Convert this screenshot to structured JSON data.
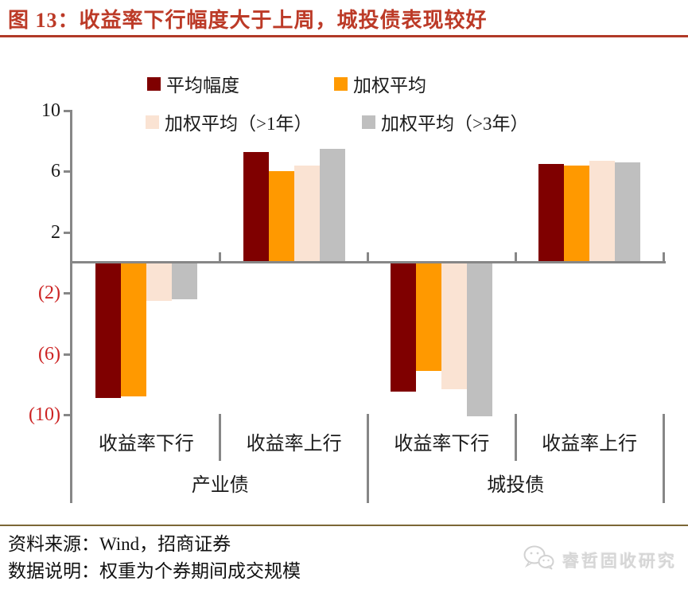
{
  "title": {
    "label": "图 13：收益率下行幅度大于上周，城投债表现较好"
  },
  "chart_data": {
    "type": "bar",
    "categories": [
      "收益率下行",
      "收益率上行",
      "收益率下行",
      "收益率上行"
    ],
    "group_labels": [
      "产业债",
      "城投债"
    ],
    "series": [
      {
        "name": "平均幅度",
        "color": "#7F0000",
        "values": [
          -8.9,
          7.3,
          -8.5,
          6.5
        ]
      },
      {
        "name": "加权平均",
        "color": "#FF9900",
        "values": [
          -8.8,
          6.0,
          -7.1,
          6.4
        ]
      },
      {
        "name": "加权平均（>1年）",
        "color": "#FAE3D3",
        "values": [
          -2.5,
          6.4,
          -8.3,
          6.7
        ]
      },
      {
        "name": "加权平均（>3年）",
        "color": "#BFBFBF",
        "values": [
          -2.4,
          7.5,
          -10.1,
          6.6
        ]
      }
    ],
    "yticks": [
      10,
      6,
      2,
      -2,
      -6,
      -10
    ],
    "ytick_labels": [
      "10",
      "6",
      "2",
      "(2)",
      "(6)",
      "(10)"
    ],
    "ylim": [
      -10.5,
      10
    ],
    "xlabel": "",
    "ylabel": "",
    "grid": false,
    "legend_position": "top",
    "axis_color": "#878787",
    "negative_tick_color": "#CC2222"
  },
  "footer": {
    "source_label": "资料来源：Wind，招商证券",
    "note_label": "数据说明：权重为个券期间成交规模"
  },
  "watermark": {
    "icon": "wechat-icon",
    "label": "睿哲固收研究"
  }
}
